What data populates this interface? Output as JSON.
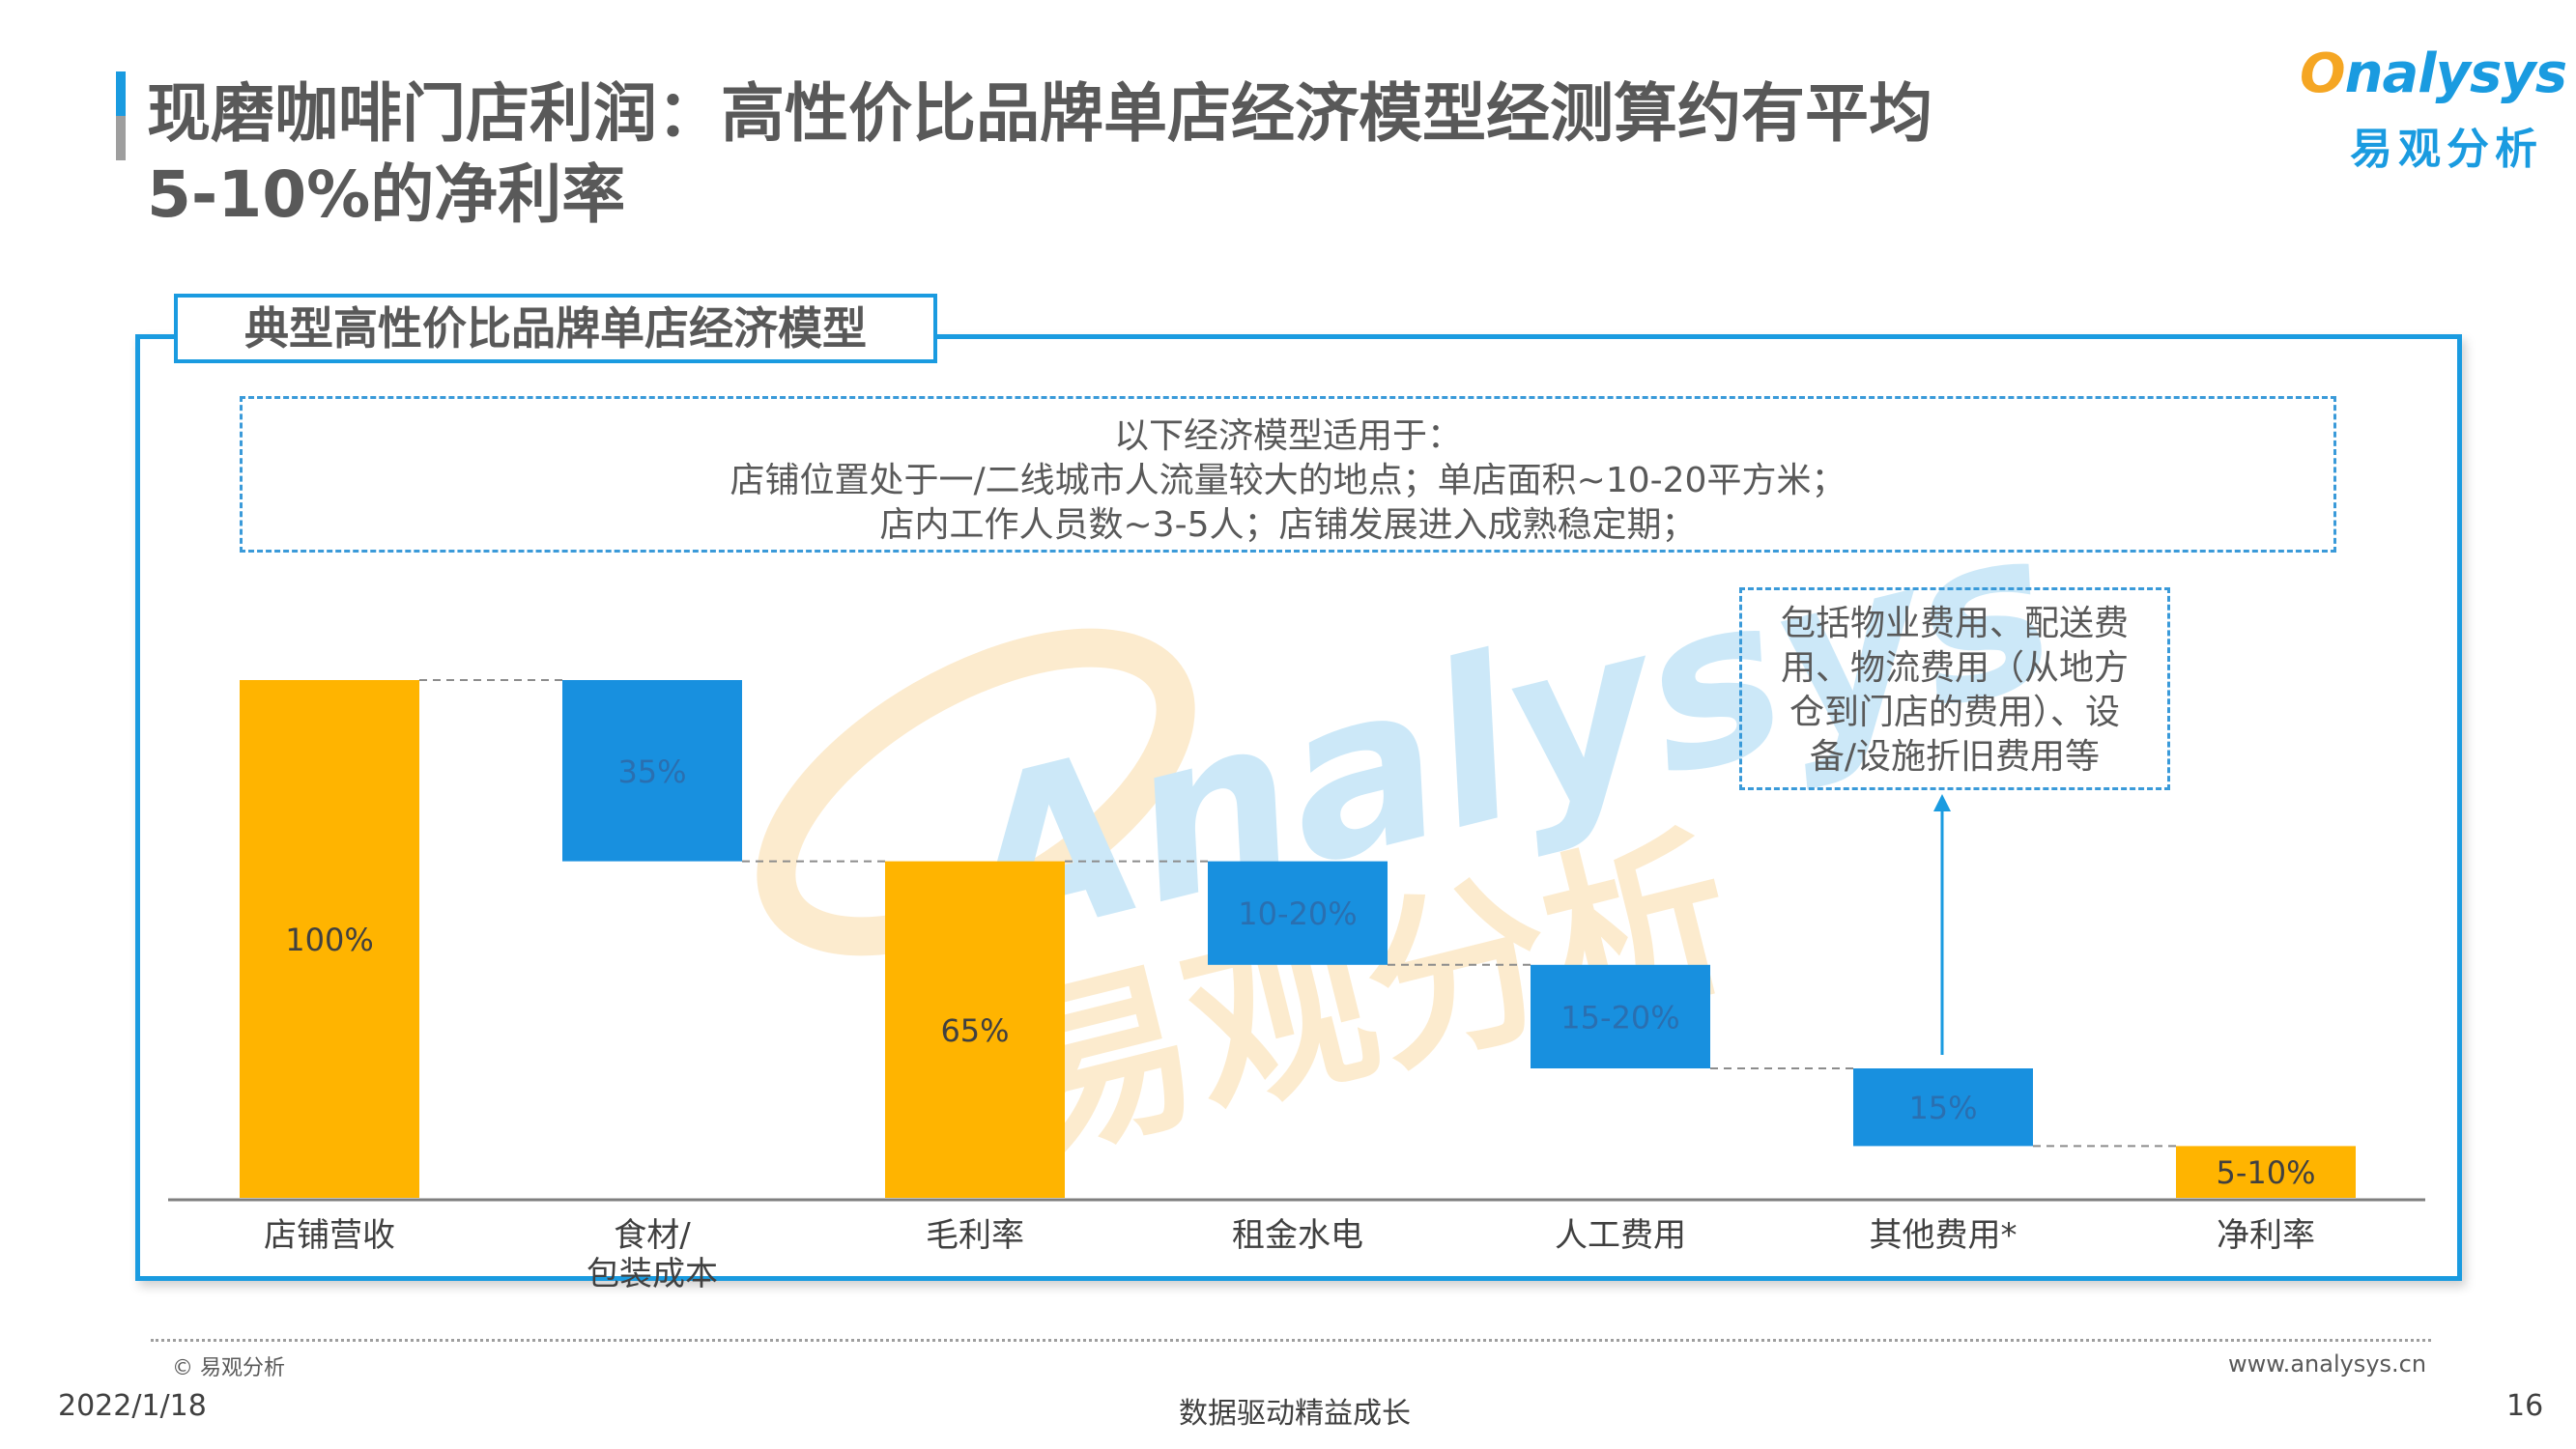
{
  "title": "现磨咖啡门店利润：高性价比品牌单店经济模型经测算约有平均5-10%的净利率",
  "title_lines": [
    "现磨咖啡门店利润：高性价比品牌单店经济模型经测算约有平均",
    "5-10%的净利率"
  ],
  "logo": {
    "o": "O",
    "rest": "nalysys",
    "sub": "易观分析"
  },
  "section_title": "典型高性价比品牌单店经济模型",
  "assumptions": [
    "以下经济模型适用于：",
    "店铺位置处于一/二线城市人流量较大的地点；单店面积~10-20平方米；",
    "店内工作人员数~3-5人；店铺发展进入成熟稳定期；"
  ],
  "note": [
    "包括物业费用、配送费",
    "用、物流费用（从地方",
    "仓到门店的费用）、设",
    "备/设施折旧费用等"
  ],
  "watermark": {
    "en": "Analysys",
    "cn": "易观分析"
  },
  "chart_data": {
    "type": "bar",
    "subtype": "waterfall",
    "ylim": [
      0,
      100
    ],
    "categories": [
      {
        "label": "店铺营收",
        "lines": [
          "店铺营收"
        ]
      },
      {
        "label": "食材/包装成本",
        "lines": [
          "食材/",
          "包装成本"
        ]
      },
      {
        "label": "毛利率",
        "lines": [
          "毛利率"
        ]
      },
      {
        "label": "租金水电",
        "lines": [
          "租金水电"
        ]
      },
      {
        "label": "人工费用",
        "lines": [
          "人工费用"
        ]
      },
      {
        "label": "其他费用*",
        "lines": [
          "其他费用*"
        ]
      },
      {
        "label": "净利率",
        "lines": [
          "净利率"
        ]
      }
    ],
    "bars": [
      {
        "kind": "total",
        "start": 0,
        "end": 100,
        "label": "100%"
      },
      {
        "kind": "decrease",
        "start": 65,
        "end": 100,
        "label": "35%"
      },
      {
        "kind": "total",
        "start": 0,
        "end": 65,
        "label": "65%"
      },
      {
        "kind": "decrease",
        "start": 45,
        "end": 65,
        "label": "10-20%"
      },
      {
        "kind": "decrease",
        "start": 25,
        "end": 45,
        "label": "15-20%"
      },
      {
        "kind": "decrease",
        "start": 10,
        "end": 25,
        "label": "15%"
      },
      {
        "kind": "total",
        "start": 0,
        "end": 10,
        "label": "5-10%"
      }
    ],
    "colors": {
      "total": "#ffb400",
      "decrease": "#1890df"
    }
  },
  "footer": {
    "copyright": "© 易观分析",
    "site": "www.analysys.cn",
    "date": "2022/1/18",
    "slogan": "数据驱动精益成长",
    "page": "16"
  }
}
